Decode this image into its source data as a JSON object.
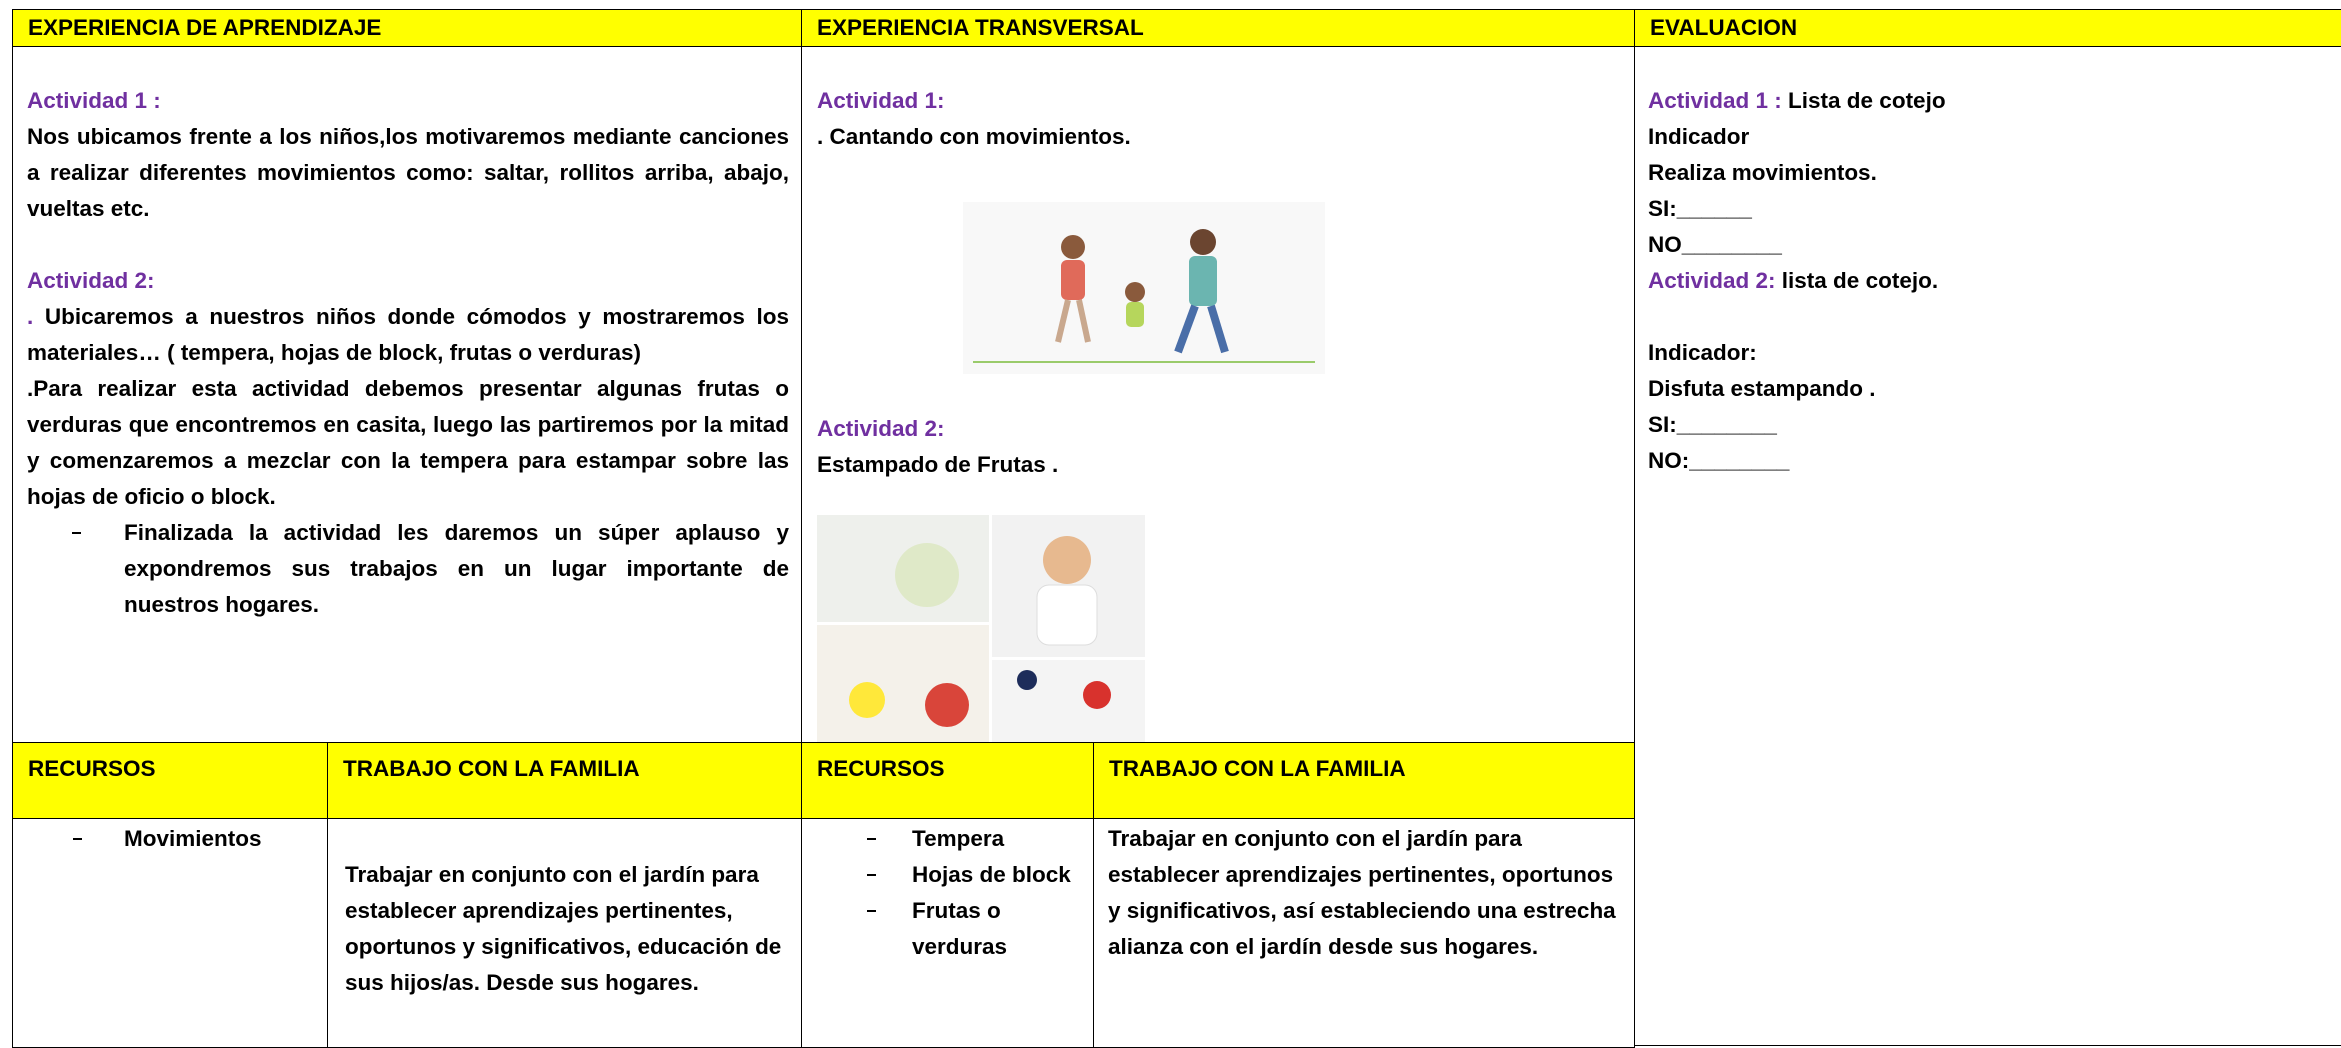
{
  "table": {
    "headers": [
      "EXPERIENCIA DE APRENDIZAJE",
      "EXPERIENCIA TRANSVERSAL",
      "EVALUACION"
    ],
    "aprendizaje": {
      "activity_1": {
        "title": "Actividad 1 :",
        "text": "Nos ubicamos frente a los niños,los motivaremos mediante canciones a realizar diferentes movimientos como: saltar, rollitos  arriba, abajo, vueltas etc."
      },
      "activity_2": {
        "title": "Actividad 2:",
        "lead": ".",
        "paragraphs": [
          " Ubicaremos a nuestros niños donde  cómodos y mostraremos los materiales… ( tempera, hojas de block, frutas o verduras)",
          ".Para realizar esta actividad debemos presentar algunas frutas o verduras que encontremos en casita, luego las partiremos por la mitad y comenzaremos a mezclar con la tempera para estampar sobre las hojas de oficio o block."
        ],
        "bullet": "Finalizada la actividad les daremos un súper aplauso y expondremos sus trabajos en un lugar importante de nuestros hogares."
      }
    },
    "transversal": {
      "activity_1": {
        "title": "Actividad 1:",
        "text": ". Cantando con movimientos."
      },
      "activity_2": {
        "title": "Actividad 2:",
        "text": "Estampado de Frutas ."
      }
    },
    "evaluacion": {
      "activity_1": {
        "title": "Actividad 1 :",
        "text": " Lista de cotejo"
      },
      "lines_1": [
        "Indicador",
        "Realiza movimientos.",
        "SI:______",
        "NO________"
      ],
      "activity_2": {
        "title": "Actividad 2:",
        "text": " lista de cotejo."
      },
      "lines_2": [
        "Indicador:",
        "Disfuta estampando .",
        "SI:________",
        "NO:________"
      ]
    },
    "sub_headers": [
      "RECURSOS",
      "TRABAJO CON LA FAMILIA",
      "RECURSOS",
      "TRABAJO CON LA FAMILIA"
    ],
    "recursos_1": [
      "Movimientos"
    ],
    "familia_1": "Trabajar en conjunto con el jardín para establecer aprendizajes pertinentes, oportunos y significativos, educación de sus hijos/as. Desde sus hogares.",
    "recursos_2": [
      "Tempera",
      "Hojas de block",
      "Frutas o verduras"
    ],
    "familia_2": "Trabajar en conjunto con el jardín para establecer aprendizajes pertinentes, oportunos y significativos, así estableciendo una estrecha alianza con el jardín desde sus hogares."
  }
}
